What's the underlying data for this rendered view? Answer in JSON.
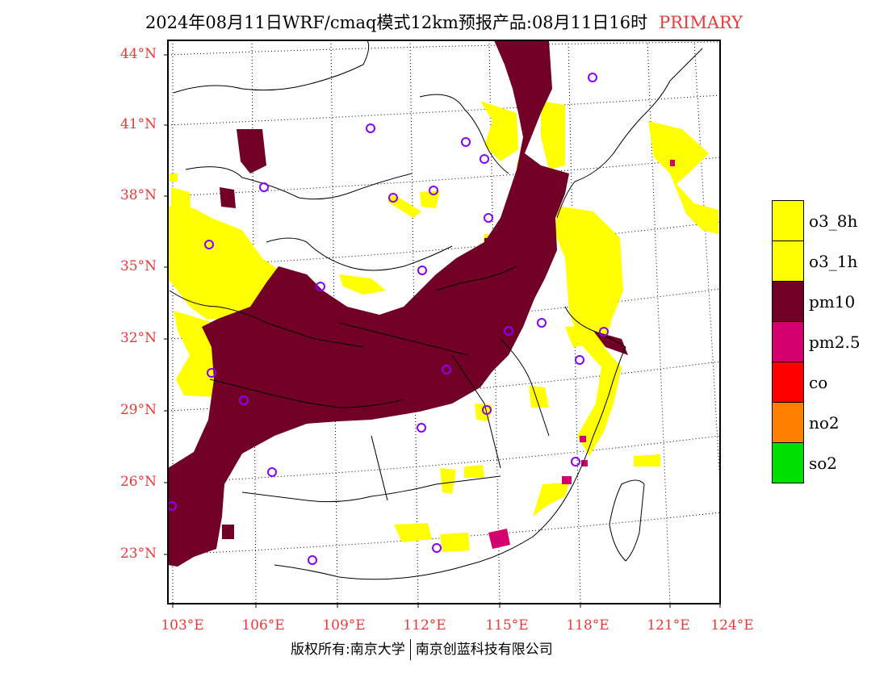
{
  "title": {
    "main": "2024年08月11日WRF/cmaq模式12km预报产品:08月11日16时",
    "tag": "PRIMARY"
  },
  "map": {
    "lat_labels": [
      "44°N",
      "41°N",
      "38°N",
      "35°N",
      "32°N",
      "29°N",
      "26°N",
      "23°N"
    ],
    "lon_labels": [
      "103°E",
      "106°E",
      "109°E",
      "112°E",
      "115°E",
      "118°E",
      "121°E",
      "124°E"
    ],
    "lat_range": [
      21,
      44.5
    ],
    "lon_range": [
      102.8,
      124
    ],
    "station_marker_color": "#8a00ff",
    "colors": {
      "pm10": "#720026",
      "o3": "#ffff00",
      "pm25": "#d4006e"
    }
  },
  "legend": [
    {
      "label": "o3_8h",
      "color": "#ffff00"
    },
    {
      "label": "o3_1h",
      "color": "#ffff00"
    },
    {
      "label": "pm10",
      "color": "#720026"
    },
    {
      "label": "pm2.5",
      "color": "#d4006e"
    },
    {
      "label": "co",
      "color": "#ff0000"
    },
    {
      "label": "no2",
      "color": "#ff8000"
    },
    {
      "label": "so2",
      "color": "#00e000"
    }
  ],
  "footer": {
    "left": "版权所有:南京大学",
    "right": "南京创蓝科技有限公司"
  }
}
